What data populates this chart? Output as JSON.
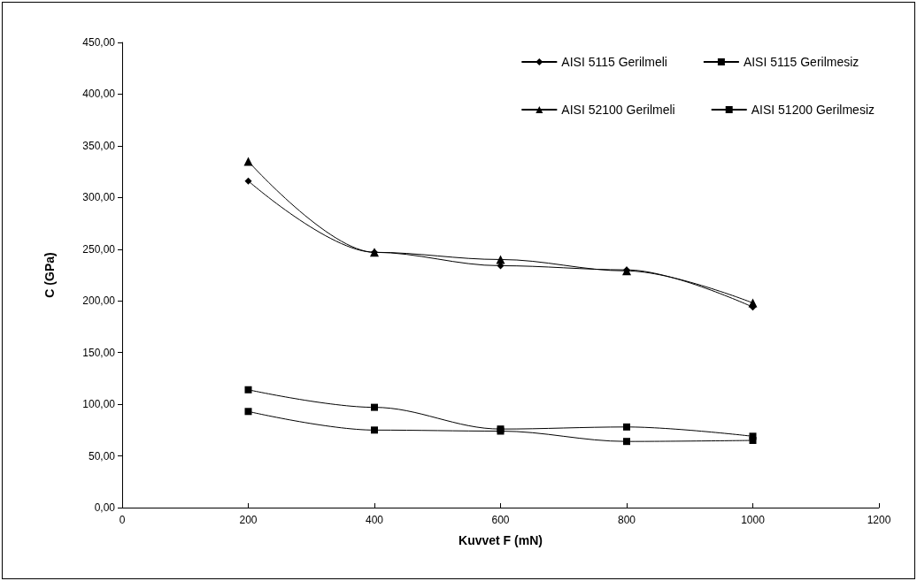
{
  "chart_data": {
    "type": "line",
    "xlabel": "Kuvvet F (mN)",
    "ylabel": "C (GPa)",
    "x": [
      200,
      400,
      600,
      800,
      1000
    ],
    "series": [
      {
        "name": "AISI 5115 Gerilmeli",
        "color": "#000000",
        "marker": "diamond",
        "values": [
          316,
          247,
          234,
          230,
          194
        ]
      },
      {
        "name": "AISI 5115 Gerilmesiz",
        "color": "#000000",
        "marker": "square",
        "values": [
          114,
          97,
          76,
          78,
          69
        ]
      },
      {
        "name": "AISI 52100 Gerilmeli",
        "color": "#000000",
        "marker": "triangle",
        "values": [
          335,
          247,
          240,
          229,
          198
        ]
      },
      {
        "name": "AISI 51200 Gerilmesiz",
        "color": "#000000",
        "marker": "square",
        "values": [
          93,
          75,
          74,
          64,
          65
        ]
      }
    ],
    "xlim": [
      0,
      1200
    ],
    "xticks": [
      0,
      200,
      400,
      600,
      800,
      1000,
      1200
    ],
    "ylim": [
      0,
      450
    ],
    "yticks": [
      {
        "value": 0,
        "label": "0,00"
      },
      {
        "value": 50,
        "label": "50,00"
      },
      {
        "value": 100,
        "label": "100,00"
      },
      {
        "value": 150,
        "label": "150,00"
      },
      {
        "value": 200,
        "label": "200,00"
      },
      {
        "value": 250,
        "label": "250,00"
      },
      {
        "value": 300,
        "label": "300,00"
      },
      {
        "value": 350,
        "label": "350,00"
      },
      {
        "value": 400,
        "label": "400,00"
      },
      {
        "value": 450,
        "label": "450,00"
      }
    ],
    "grid": false,
    "legend": "top right",
    "line_style": "solid"
  }
}
